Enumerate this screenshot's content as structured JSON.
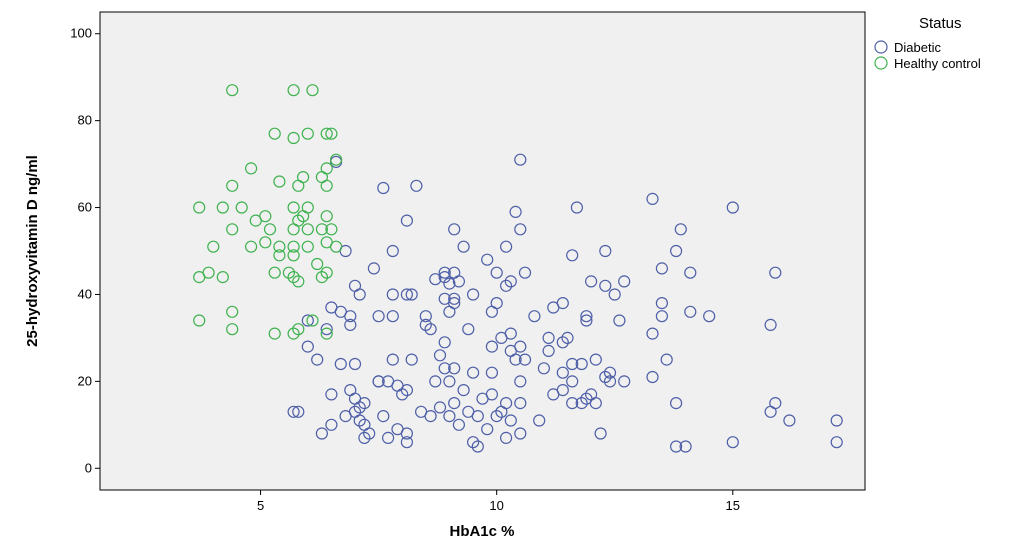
{
  "chart_data": {
    "type": "scatter",
    "title": "",
    "xlabel": "HbA1c %",
    "ylabel": "25-hydroxyvitamin D ng/ml",
    "xlim": [
      1.6,
      17.8
    ],
    "ylim": [
      -5,
      105
    ],
    "xticks": [
      5,
      10,
      15
    ],
    "yticks": [
      0,
      20,
      40,
      60,
      80,
      100
    ],
    "grid": false,
    "plot_background": "#f0f0f0",
    "legend": {
      "title": "Status",
      "position": "top-right"
    },
    "series": [
      {
        "name": "Diabetic",
        "color": "#4e5fa8",
        "marker": "open-circle",
        "points": [
          [
            6.6,
            70.5
          ],
          [
            10.5,
            71
          ],
          [
            7.6,
            64.5
          ],
          [
            8.3,
            65
          ],
          [
            13.3,
            62
          ],
          [
            11.7,
            60
          ],
          [
            15,
            60
          ],
          [
            10.4,
            59
          ],
          [
            8.1,
            57
          ],
          [
            9.1,
            55
          ],
          [
            10.5,
            55
          ],
          [
            13.9,
            55
          ],
          [
            12.3,
            50
          ],
          [
            13.8,
            50
          ],
          [
            10.2,
            51
          ],
          [
            9.3,
            51
          ],
          [
            7.8,
            50
          ],
          [
            11.6,
            49
          ],
          [
            9.8,
            48
          ],
          [
            6.8,
            50
          ],
          [
            7.4,
            46
          ],
          [
            12,
            43
          ],
          [
            12.7,
            43
          ],
          [
            14.1,
            45
          ],
          [
            15.9,
            45
          ],
          [
            13.5,
            46
          ],
          [
            10,
            45
          ],
          [
            10.6,
            45
          ],
          [
            8.9,
            45
          ],
          [
            9.1,
            45
          ],
          [
            8.9,
            44
          ],
          [
            9.2,
            43
          ],
          [
            8.7,
            43.5
          ],
          [
            9,
            42.5
          ],
          [
            10.3,
            43
          ],
          [
            10.2,
            42
          ],
          [
            12.3,
            42
          ],
          [
            7,
            42
          ],
          [
            7.1,
            40
          ],
          [
            7.8,
            40
          ],
          [
            8.1,
            40
          ],
          [
            8.2,
            40
          ],
          [
            8.9,
            39
          ],
          [
            9.1,
            39
          ],
          [
            9.1,
            38
          ],
          [
            9.5,
            40
          ],
          [
            10,
            38
          ],
          [
            11.4,
            38
          ],
          [
            12.5,
            40
          ],
          [
            14.1,
            36
          ],
          [
            6.5,
            37
          ],
          [
            6.7,
            36
          ],
          [
            6.9,
            35
          ],
          [
            7.5,
            35
          ],
          [
            7.8,
            35
          ],
          [
            8.5,
            35
          ],
          [
            9,
            36
          ],
          [
            9.9,
            36
          ],
          [
            10.8,
            35
          ],
          [
            11.9,
            35
          ],
          [
            11.9,
            34
          ],
          [
            12.6,
            34
          ],
          [
            13.3,
            31
          ],
          [
            13.5,
            35
          ],
          [
            6,
            34
          ],
          [
            6.4,
            32
          ],
          [
            6.9,
            33
          ],
          [
            8.5,
            33
          ],
          [
            8.6,
            32
          ],
          [
            9.4,
            32
          ],
          [
            10.1,
            30
          ],
          [
            10.3,
            31
          ],
          [
            11.1,
            30
          ],
          [
            11.4,
            29
          ],
          [
            11.5,
            30
          ],
          [
            8.9,
            29
          ],
          [
            9.9,
            28
          ],
          [
            10.5,
            28
          ],
          [
            10.6,
            25
          ],
          [
            11.1,
            27
          ],
          [
            11.8,
            24
          ],
          [
            12.1,
            25
          ],
          [
            12.4,
            22
          ],
          [
            12.7,
            20
          ],
          [
            13.3,
            21
          ],
          [
            13.6,
            25
          ],
          [
            6,
            28
          ],
          [
            6.2,
            25
          ],
          [
            6.7,
            24
          ],
          [
            7,
            24
          ],
          [
            7.5,
            20
          ],
          [
            7.8,
            25
          ],
          [
            8.2,
            25
          ],
          [
            8.8,
            26
          ],
          [
            8.9,
            23
          ],
          [
            9.1,
            23
          ],
          [
            9.5,
            22
          ],
          [
            9.9,
            22
          ],
          [
            10.3,
            27
          ],
          [
            10.4,
            25
          ],
          [
            10.5,
            20
          ],
          [
            11,
            23
          ],
          [
            11.4,
            22
          ],
          [
            11.6,
            24
          ],
          [
            12.3,
            21
          ],
          [
            6.5,
            17
          ],
          [
            6.9,
            18
          ],
          [
            7,
            16
          ],
          [
            7.2,
            15
          ],
          [
            7.5,
            20
          ],
          [
            7.7,
            20
          ],
          [
            7.9,
            19
          ],
          [
            8,
            17
          ],
          [
            8.1,
            18
          ],
          [
            8.7,
            20
          ],
          [
            9,
            20
          ],
          [
            9.3,
            18
          ],
          [
            9.7,
            16
          ],
          [
            9.9,
            17
          ],
          [
            10.2,
            15
          ],
          [
            10.5,
            15
          ],
          [
            11.2,
            17
          ],
          [
            11.4,
            18
          ],
          [
            11.6,
            20
          ],
          [
            11.9,
            16
          ],
          [
            12.1,
            15
          ],
          [
            12.4,
            20
          ],
          [
            13.8,
            15
          ],
          [
            15.9,
            15
          ],
          [
            5.8,
            13
          ],
          [
            6.5,
            10
          ],
          [
            6.8,
            12
          ],
          [
            7,
            13
          ],
          [
            7.1,
            11
          ],
          [
            7.2,
            10
          ],
          [
            7.3,
            8
          ],
          [
            7.7,
            7
          ],
          [
            7.9,
            9
          ],
          [
            8.1,
            8
          ],
          [
            8.4,
            13
          ],
          [
            8.6,
            12
          ],
          [
            9,
            12
          ],
          [
            9.2,
            10
          ],
          [
            9.4,
            13
          ],
          [
            9.6,
            12
          ],
          [
            9.8,
            9
          ],
          [
            10,
            12
          ],
          [
            10.3,
            11
          ],
          [
            10.5,
            8
          ],
          [
            10.9,
            11
          ],
          [
            11.6,
            15
          ],
          [
            12.2,
            8
          ],
          [
            13.8,
            5
          ],
          [
            14,
            5
          ],
          [
            15,
            6
          ],
          [
            15.8,
            13
          ],
          [
            16.2,
            11
          ],
          [
            17.2,
            11
          ],
          [
            17.2,
            6
          ],
          [
            7.2,
            7
          ],
          [
            8.1,
            6
          ],
          [
            9.5,
            6
          ],
          [
            9.6,
            5
          ],
          [
            10.2,
            7
          ],
          [
            11.8,
            15
          ],
          [
            6.3,
            8
          ],
          [
            5.7,
            13
          ],
          [
            7.1,
            14
          ],
          [
            9.1,
            15
          ],
          [
            10.1,
            13
          ],
          [
            8.8,
            14
          ],
          [
            7.6,
            12
          ],
          [
            12,
            17
          ],
          [
            14.5,
            35
          ],
          [
            15.8,
            33
          ],
          [
            13.5,
            38
          ],
          [
            11.2,
            37
          ]
        ]
      },
      {
        "name": "Healthy control",
        "color": "#3fb24f",
        "marker": "open-circle",
        "points": [
          [
            4.4,
            87
          ],
          [
            5.7,
            87
          ],
          [
            6.1,
            87
          ],
          [
            5.3,
            77
          ],
          [
            5.7,
            76
          ],
          [
            6,
            77
          ],
          [
            6.4,
            77
          ],
          [
            6.5,
            77
          ],
          [
            6.6,
            71
          ],
          [
            4.8,
            69
          ],
          [
            6.4,
            69
          ],
          [
            5.9,
            67
          ],
          [
            6.3,
            67
          ],
          [
            4.4,
            65
          ],
          [
            5.4,
            66
          ],
          [
            5.8,
            65
          ],
          [
            6.4,
            65
          ],
          [
            3.7,
            60
          ],
          [
            4.2,
            60
          ],
          [
            4.6,
            60
          ],
          [
            5.7,
            60
          ],
          [
            6,
            60
          ],
          [
            5.9,
            58
          ],
          [
            6.4,
            58
          ],
          [
            5.1,
            58
          ],
          [
            4.9,
            57
          ],
          [
            5.8,
            57
          ],
          [
            4.4,
            55
          ],
          [
            5.2,
            55
          ],
          [
            5.7,
            55
          ],
          [
            6,
            55
          ],
          [
            6.3,
            55
          ],
          [
            6.5,
            55
          ],
          [
            4,
            51
          ],
          [
            4.8,
            51
          ],
          [
            5.1,
            52
          ],
          [
            5.4,
            51
          ],
          [
            5.7,
            51
          ],
          [
            6,
            51
          ],
          [
            6.4,
            52
          ],
          [
            6.6,
            51
          ],
          [
            5.4,
            49
          ],
          [
            5.7,
            49
          ],
          [
            6.2,
            47
          ],
          [
            3.7,
            44
          ],
          [
            3.9,
            45
          ],
          [
            4.2,
            44
          ],
          [
            5.6,
            45
          ],
          [
            5.7,
            44
          ],
          [
            5.8,
            43
          ],
          [
            6.3,
            44
          ],
          [
            6.4,
            45
          ],
          [
            4.4,
            36
          ],
          [
            3.7,
            34
          ],
          [
            4.4,
            32
          ],
          [
            5.3,
            31
          ],
          [
            5.7,
            31
          ],
          [
            5.8,
            32
          ],
          [
            6.1,
            34
          ],
          [
            6.4,
            31
          ],
          [
            5.3,
            45
          ]
        ]
      }
    ]
  }
}
